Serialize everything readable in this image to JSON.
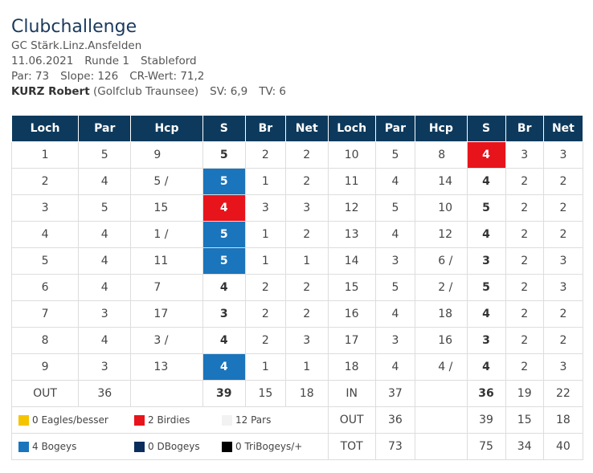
{
  "header": {
    "title": "Clubchallenge",
    "club": "GC Stärk.Linz.Ansfelden",
    "date": "11.06.2021",
    "round": "Runde 1",
    "format": "Stableford",
    "par": "Par: 73",
    "slope": "Slope: 126",
    "cr": "CR-Wert: 71,2",
    "player": "KURZ Robert",
    "player_club": "(Golfclub Traunsee)",
    "sv": "SV: 6,9",
    "tv": "TV: 6"
  },
  "table": {
    "columns": [
      "Loch",
      "Par",
      "Hcp",
      "S",
      "Br",
      "Net",
      "Loch",
      "Par",
      "Hcp",
      "S",
      "Br",
      "Net"
    ],
    "rows": [
      [
        "1",
        "5",
        "9",
        "5",
        "2",
        "2",
        "10",
        "5",
        "8",
        "4",
        "3",
        "3"
      ],
      [
        "2",
        "4",
        "5 /",
        "5",
        "1",
        "2",
        "11",
        "4",
        "14",
        "4",
        "2",
        "2"
      ],
      [
        "3",
        "5",
        "15",
        "4",
        "3",
        "3",
        "12",
        "5",
        "10",
        "5",
        "2",
        "2"
      ],
      [
        "4",
        "4",
        "1 /",
        "5",
        "1",
        "2",
        "13",
        "4",
        "12",
        "4",
        "2",
        "2"
      ],
      [
        "5",
        "4",
        "11",
        "5",
        "1",
        "1",
        "14",
        "3",
        "6 /",
        "3",
        "2",
        "3"
      ],
      [
        "6",
        "4",
        "7",
        "4",
        "2",
        "2",
        "15",
        "5",
        "2 /",
        "5",
        "2",
        "3"
      ],
      [
        "7",
        "3",
        "17",
        "3",
        "2",
        "2",
        "16",
        "4",
        "18",
        "4",
        "2",
        "2"
      ],
      [
        "8",
        "4",
        "3 /",
        "4",
        "2",
        "3",
        "17",
        "3",
        "16",
        "3",
        "2",
        "2"
      ],
      [
        "9",
        "3",
        "13",
        "4",
        "1",
        "1",
        "18",
        "4",
        "4 /",
        "4",
        "2",
        "3"
      ]
    ],
    "score_colors": [
      [
        null,
        "#e8141b"
      ],
      [
        "#1a75bc",
        null
      ],
      [
        "#e8141b",
        null
      ],
      [
        "#1a75bc",
        null
      ],
      [
        "#1a75bc",
        null
      ],
      [
        null,
        null
      ],
      [
        null,
        null
      ],
      [
        null,
        null
      ],
      [
        "#1a75bc",
        null
      ]
    ],
    "out_row": [
      "OUT",
      "36",
      null,
      "39",
      "15",
      "18",
      "IN",
      "37",
      null,
      "36",
      "19",
      "22"
    ],
    "summary_rows": [
      [
        "OUT",
        "36",
        null,
        "39",
        "15",
        "18"
      ],
      [
        "TOT",
        "73",
        null,
        "75",
        "34",
        "40"
      ]
    ],
    "legend": [
      {
        "label": "0 Eagles/besser",
        "color": "#f5c400"
      },
      {
        "label": "2 Birdies",
        "color": "#e8141b"
      },
      {
        "label": "12 Pars",
        "color": "#f2f2f2"
      },
      {
        "label": "4 Bogeys",
        "color": "#1a75bc"
      },
      {
        "label": "0 DBogeys",
        "color": "#0b2d5c"
      },
      {
        "label": "0 TriBogeys/+",
        "color": "#000000"
      }
    ]
  }
}
